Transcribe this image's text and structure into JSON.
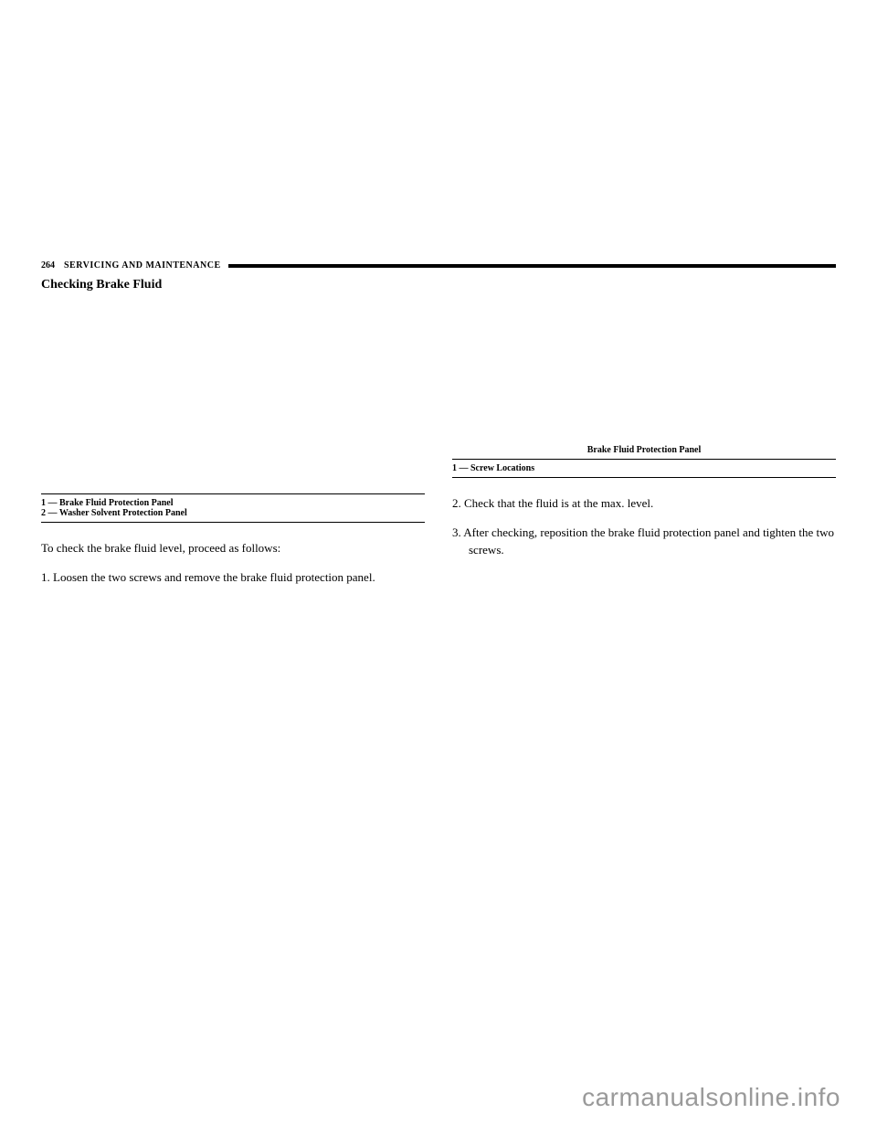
{
  "header": {
    "page_number": "264",
    "section_title": "SERVICING AND MAINTENANCE"
  },
  "left_column": {
    "subsection_heading": "Checking Brake Fluid",
    "caption_lines": [
      "1 — Brake Fluid Protection Panel",
      "2 — Washer Solvent Protection Panel"
    ],
    "intro_text": "To check the brake fluid level, proceed as follows:",
    "step1_number": "1.",
    "step1_text": "Loosen the two screws and remove the brake fluid protection panel."
  },
  "right_column": {
    "caption_title": "Brake Fluid Protection Panel",
    "caption_lines": [
      "1 — Screw Locations"
    ],
    "step2_number": "2.",
    "step2_text": "Check that the fluid is at the max. level.",
    "step3_number": "3.",
    "step3_text": "After checking, reposition the brake fluid protection panel and tighten the two screws."
  },
  "watermark": "carmanualsonline.info",
  "colors": {
    "background": "#ffffff",
    "text": "#000000",
    "watermark_color": "#9a9a9a",
    "header_bar": "#000000"
  }
}
